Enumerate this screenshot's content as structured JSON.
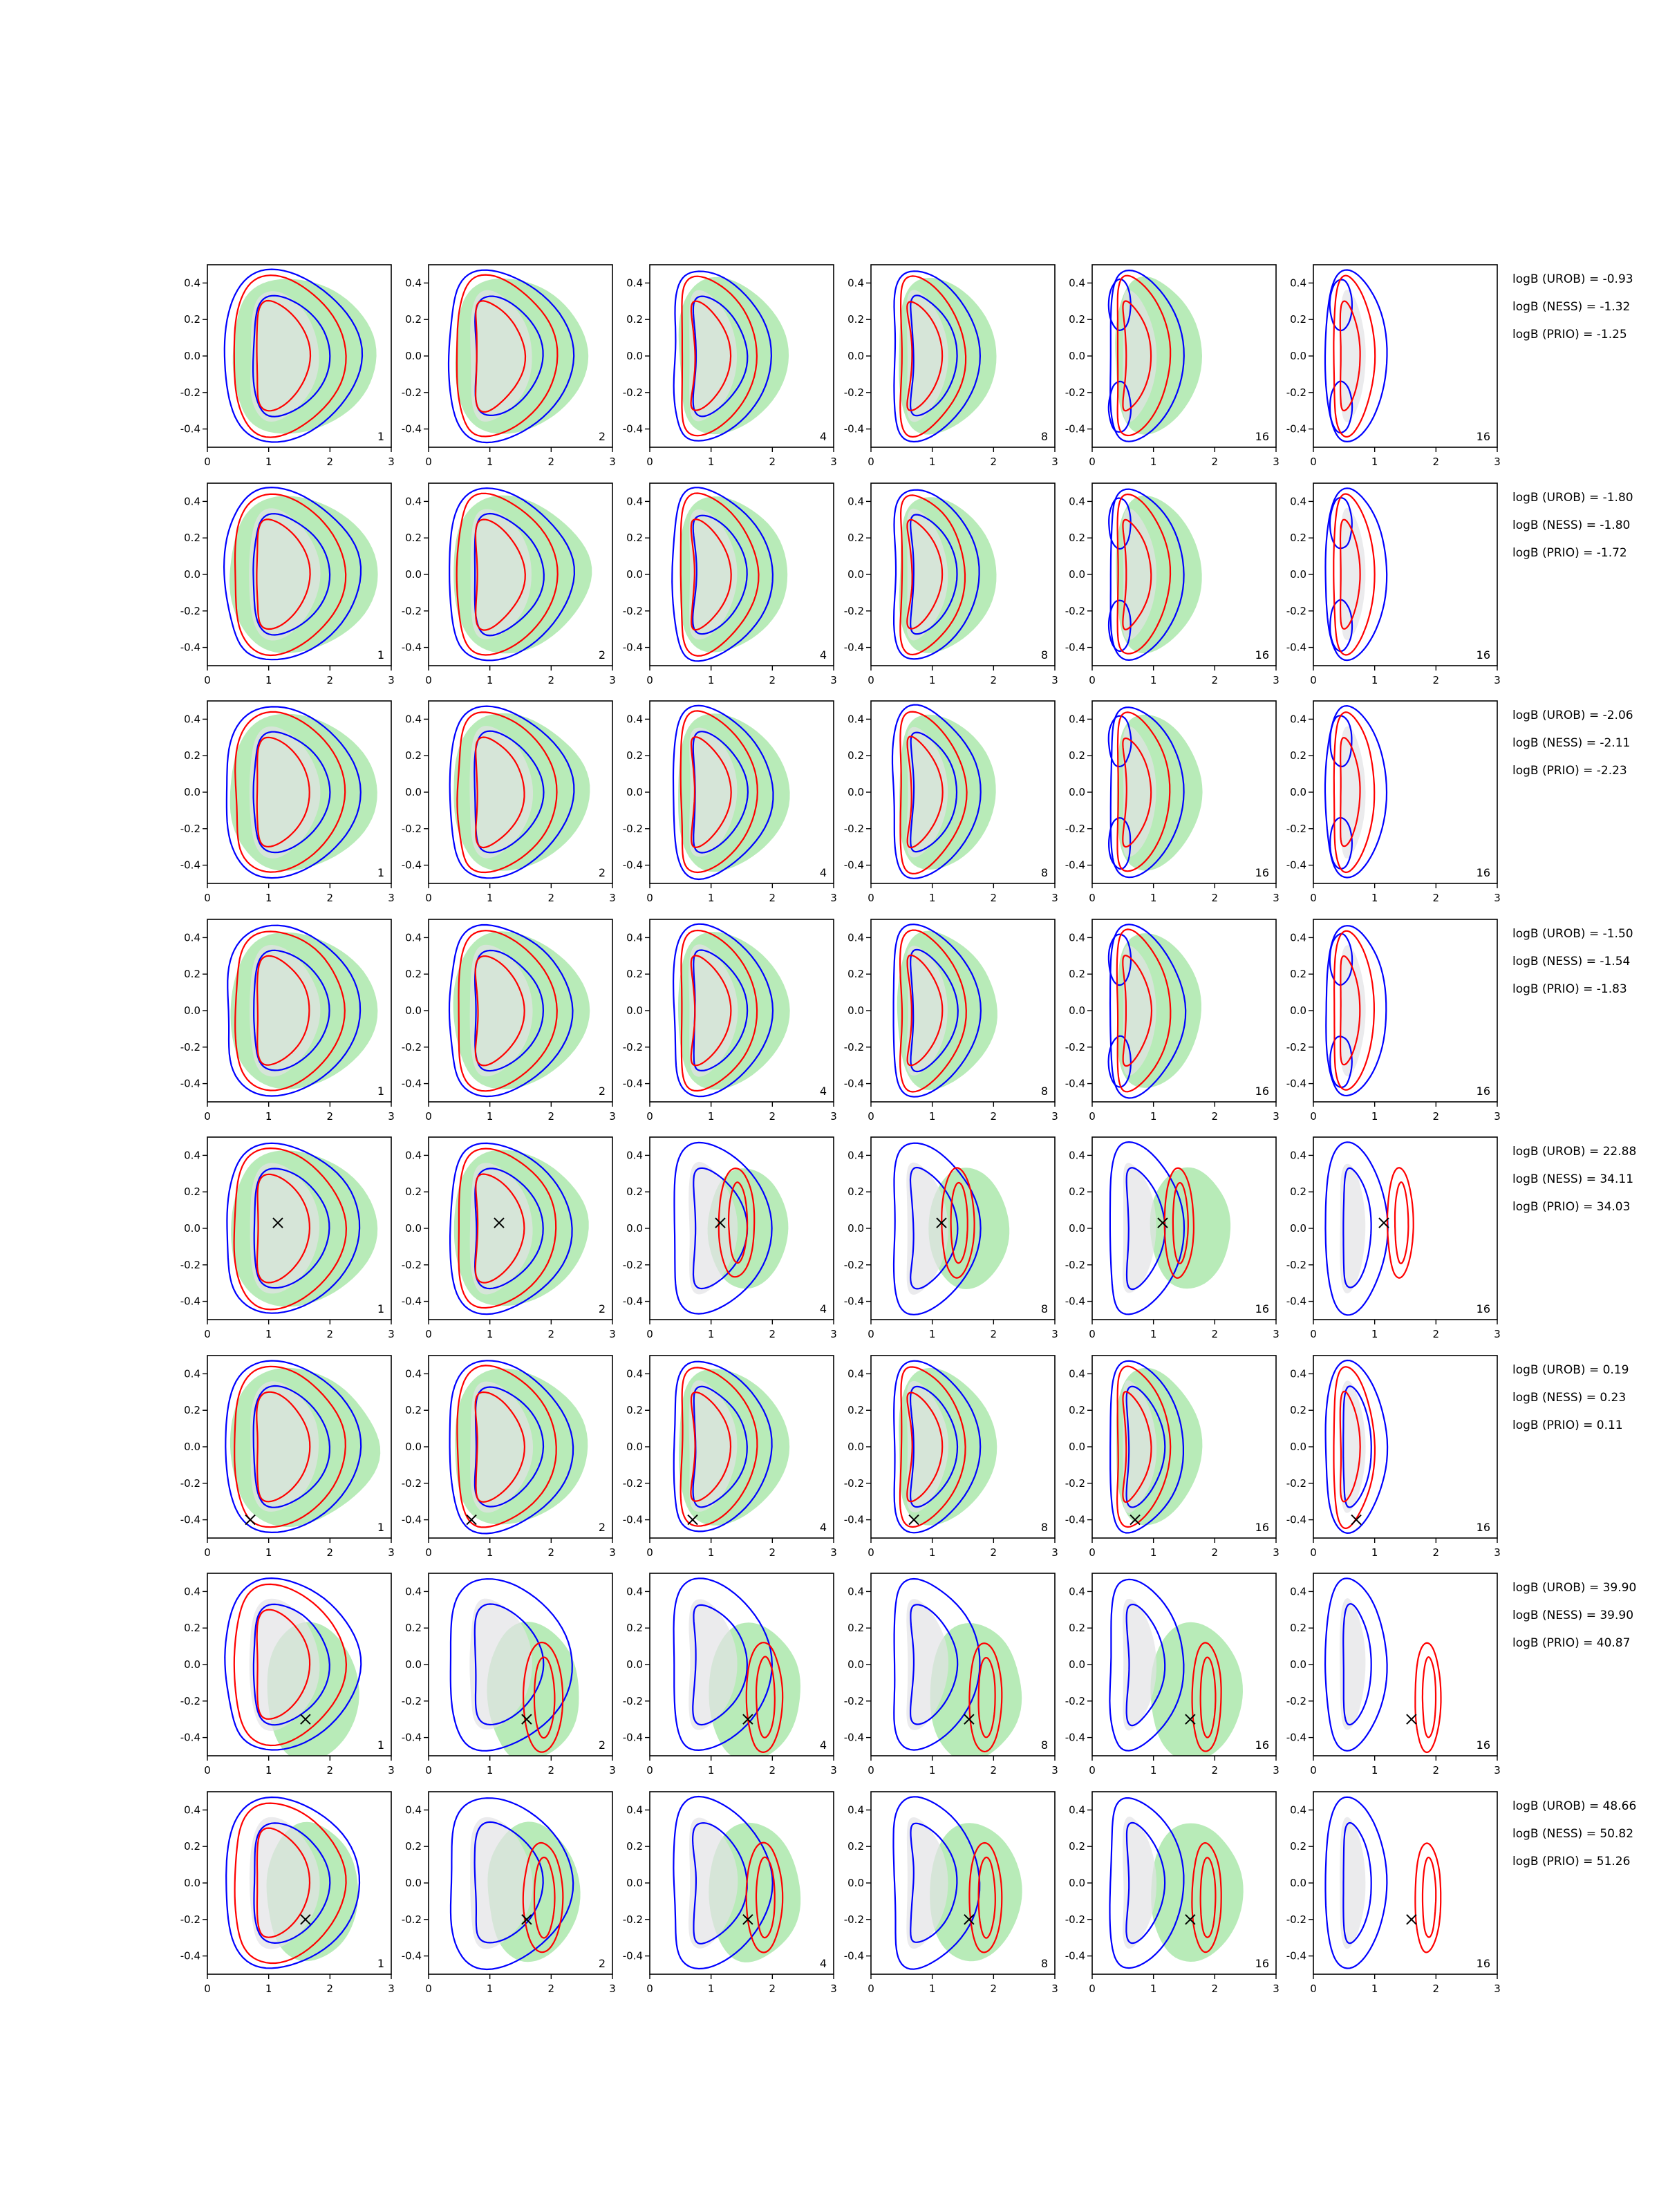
{
  "figure": {
    "xticks": [
      "0",
      "1",
      "2",
      "3"
    ],
    "yticks": [
      "-0.4",
      "-0.2",
      "0.0",
      "0.2",
      "0.4"
    ],
    "colors": {
      "prior_fill": "#e3e3e6",
      "posterior_fill": "#b8ebb8",
      "contour_a": "#0000ff",
      "contour_b": "#ff0000",
      "marker": "#000000"
    }
  },
  "chart_data": {
    "type": "contour-grid",
    "xlim": [
      0,
      3
    ],
    "ylim": [
      -0.5,
      0.5
    ],
    "columns": [
      "1",
      "2",
      "4",
      "8",
      "16",
      "16"
    ],
    "rows": [
      {
        "marker": null,
        "logB": [
          "logB (UROB) = -0.93",
          "logB (NESS) = -1.32",
          "logB (PRIO) = -1.25"
        ]
      },
      {
        "marker": null,
        "logB": [
          "logB (UROB) = -1.80",
          "logB (NESS) = -1.80",
          "logB (PRIO) = -1.72"
        ]
      },
      {
        "marker": null,
        "logB": [
          "logB (UROB) = -2.06",
          "logB (NESS) = -2.11",
          "logB (PRIO) = -2.23"
        ]
      },
      {
        "marker": null,
        "logB": [
          "logB (UROB) = -1.50",
          "logB (NESS) = -1.54",
          "logB (PRIO) = -1.83"
        ]
      },
      {
        "marker": [
          1.15,
          0.03
        ],
        "logB": [
          "logB (UROB) = 22.88",
          "logB (NESS) = 34.11",
          "logB (PRIO) = 34.03"
        ]
      },
      {
        "marker": [
          0.7,
          -0.4
        ],
        "logB": [
          "logB (UROB) = 0.19",
          "logB (NESS) = 0.23",
          "logB (PRIO) = 0.11"
        ]
      },
      {
        "marker": [
          1.6,
          -0.3
        ],
        "logB": [
          "logB (UROB) = 39.90",
          "logB (NESS) = 39.90",
          "logB (PRIO) = 40.87"
        ]
      },
      {
        "marker": [
          1.6,
          -0.2
        ],
        "logB": [
          "logB (UROB) = 48.66",
          "logB (NESS) = 50.82",
          "logB (PRIO) = 51.26"
        ]
      }
    ]
  }
}
